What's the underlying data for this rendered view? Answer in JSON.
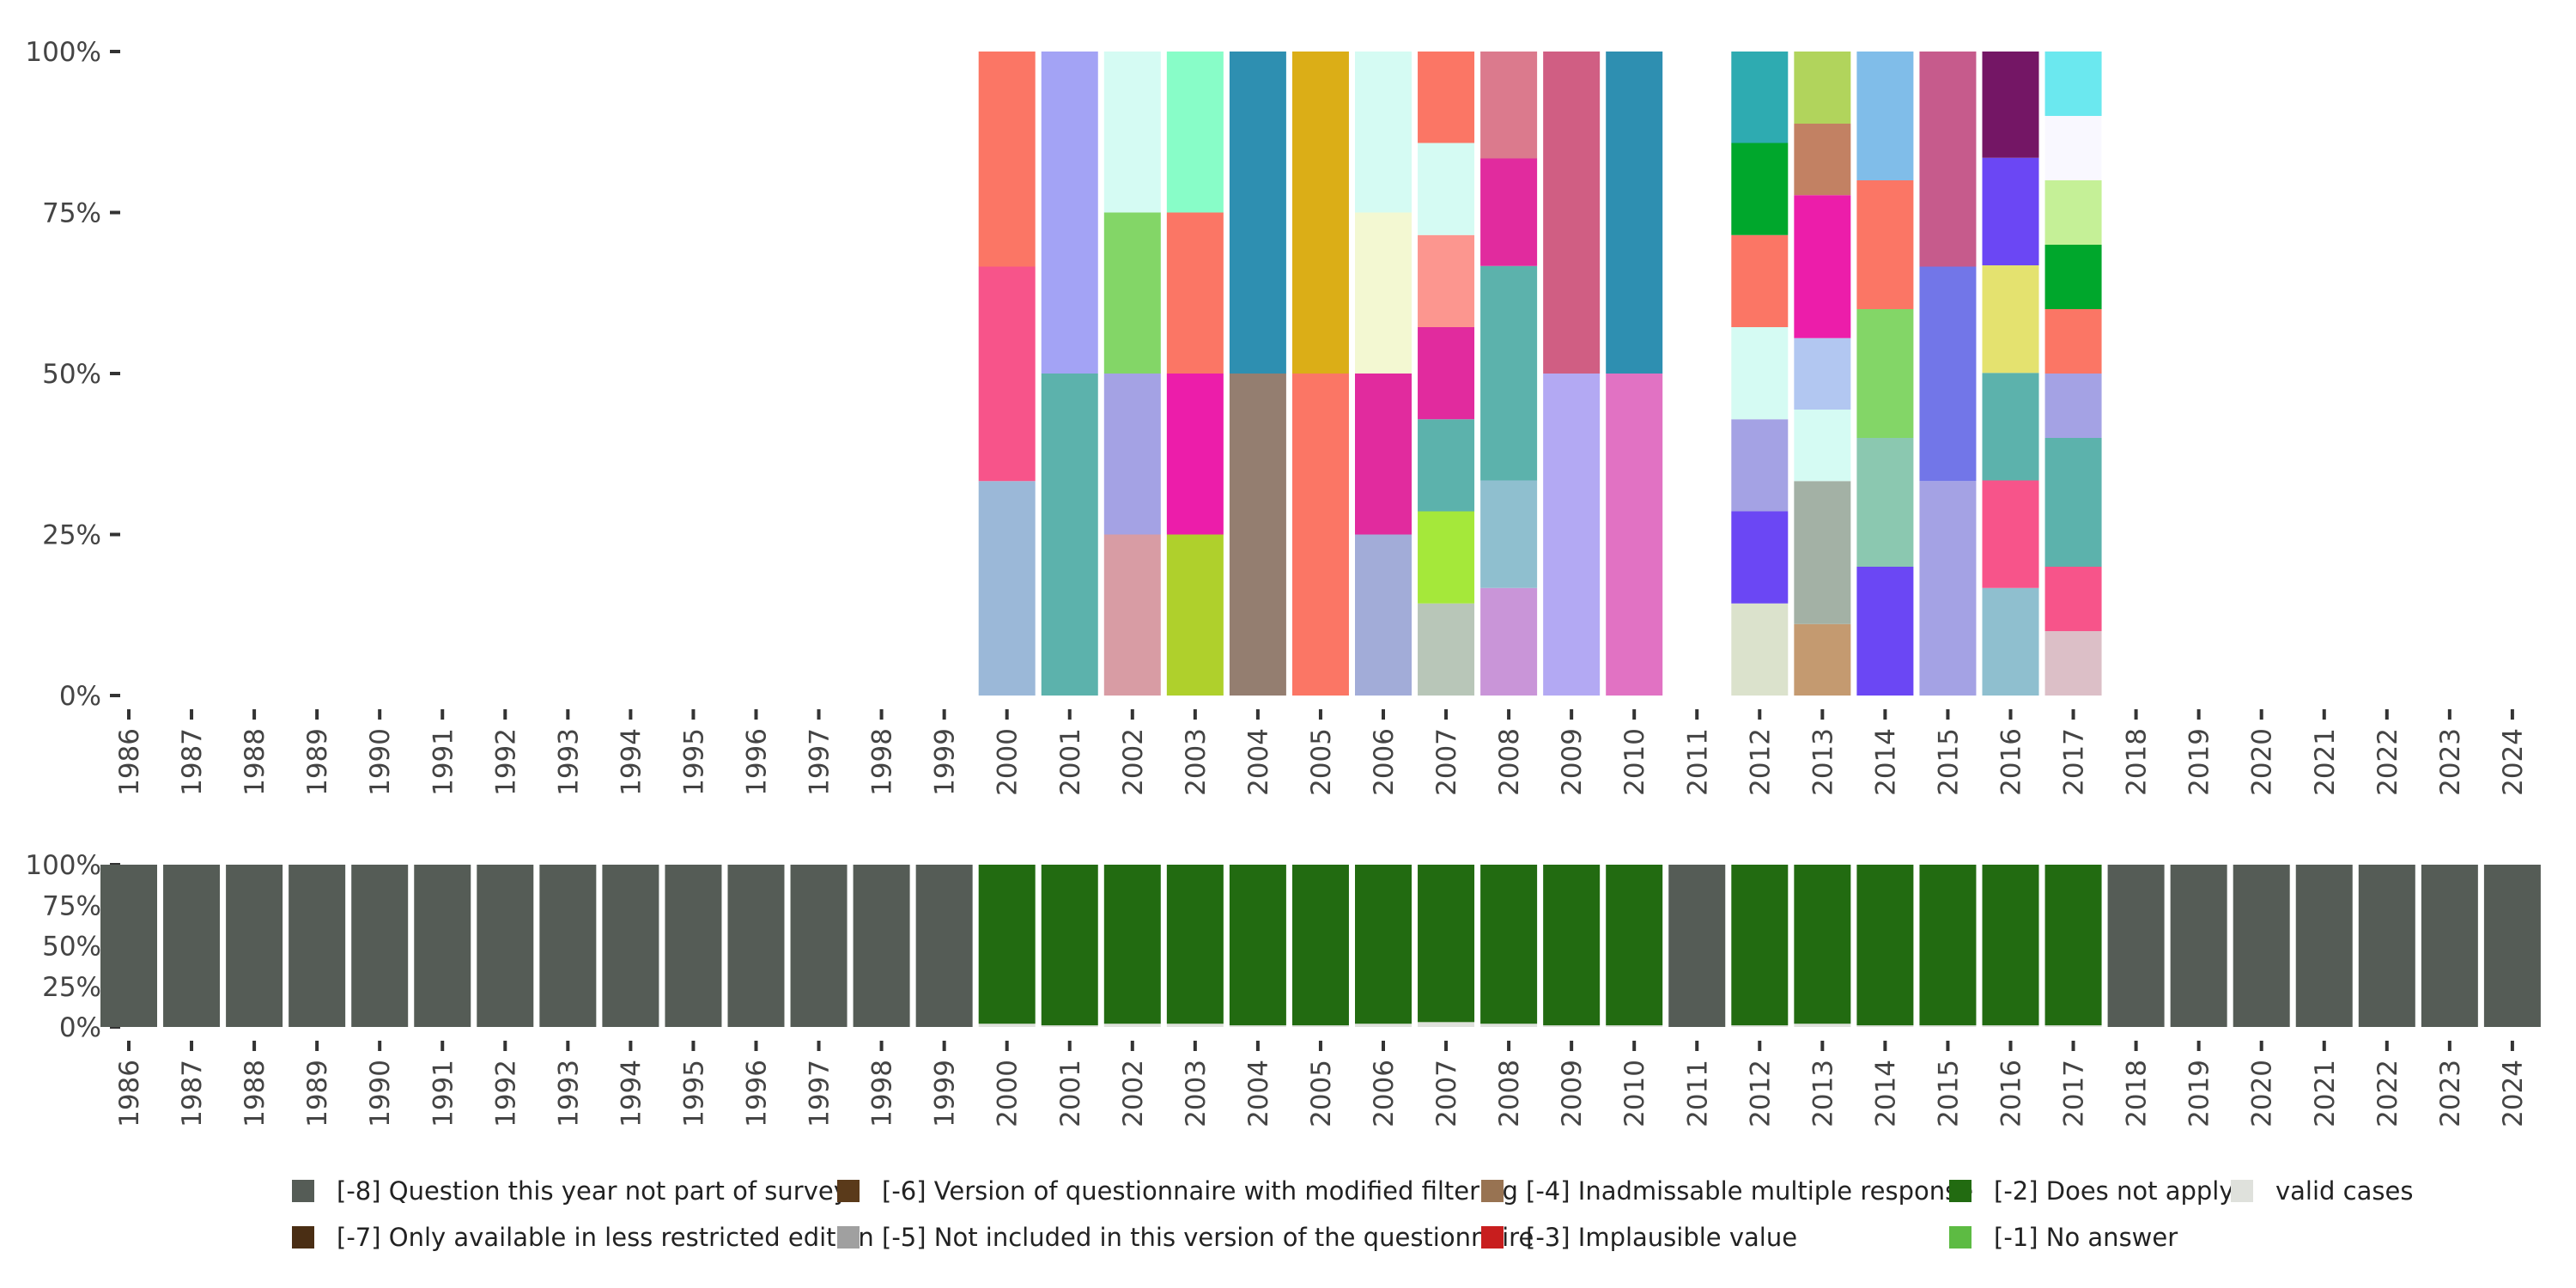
{
  "chart_data": [
    {
      "type": "bar",
      "stacked": true,
      "name": "valid-cases-distribution",
      "ylim": [
        0,
        100
      ],
      "y_ticks": [
        0,
        25,
        50,
        75,
        100
      ],
      "y_tick_labels": [
        "0%",
        "25%",
        "50%",
        "75%",
        "100%"
      ],
      "categories": [
        "1986",
        "1987",
        "1988",
        "1989",
        "1990",
        "1991",
        "1992",
        "1993",
        "1994",
        "1995",
        "1996",
        "1997",
        "1998",
        "1999",
        "2000",
        "2001",
        "2002",
        "2003",
        "2004",
        "2005",
        "2006",
        "2007",
        "2008",
        "2009",
        "2010",
        "2011",
        "2012",
        "2013",
        "2014",
        "2015",
        "2016",
        "2017",
        "2018",
        "2019",
        "2020",
        "2021",
        "2022",
        "2023",
        "2024"
      ],
      "stacks": {
        "2000": [
          {
            "value": 33.3,
            "color": "#9bb8d8"
          },
          {
            "value": 33.3,
            "color": "#f7548a"
          },
          {
            "value": 33.4,
            "color": "#fb7665"
          }
        ],
        "2001": [
          {
            "value": 50,
            "color": "#5cb2ac"
          },
          {
            "value": 50,
            "color": "#a3a3f5"
          }
        ],
        "2002": [
          {
            "value": 25,
            "color": "#d89ca4"
          },
          {
            "value": 25,
            "color": "#a4a2e4"
          },
          {
            "value": 25,
            "color": "#83d667"
          },
          {
            "value": 25,
            "color": "#d5fbf3"
          }
        ],
        "2003": [
          {
            "value": 25,
            "color": "#afd02c"
          },
          {
            "value": 25,
            "color": "#ec1daa"
          },
          {
            "value": 25,
            "color": "#fb7665"
          },
          {
            "value": 25,
            "color": "#88fdc8"
          }
        ],
        "2004": [
          {
            "value": 50,
            "color": "#947e70"
          },
          {
            "value": 50,
            "color": "#2e8fb1"
          }
        ],
        "2005": [
          {
            "value": 50,
            "color": "#fb7665"
          },
          {
            "value": 50,
            "color": "#dbae17"
          }
        ],
        "2006": [
          {
            "value": 25,
            "color": "#a2acd8"
          },
          {
            "value": 25,
            "color": "#e12b9e"
          },
          {
            "value": 25,
            "color": "#f3f8d2"
          },
          {
            "value": 25,
            "color": "#d5fbf3"
          }
        ],
        "2007": [
          {
            "value": 14.3,
            "color": "#b8c6b8"
          },
          {
            "value": 14.3,
            "color": "#a5e83a"
          },
          {
            "value": 14.3,
            "color": "#5cb2ac"
          },
          {
            "value": 14.3,
            "color": "#e12b9e"
          },
          {
            "value": 14.3,
            "color": "#fc968f"
          },
          {
            "value": 14.3,
            "color": "#d5fbf3"
          },
          {
            "value": 14.2,
            "color": "#fb7665"
          }
        ],
        "2008": [
          {
            "value": 16.7,
            "color": "#c995d8"
          },
          {
            "value": 16.7,
            "color": "#8fbfcf"
          },
          {
            "value": 33.3,
            "color": "#5cb2ac"
          },
          {
            "value": 16.7,
            "color": "#e12b9e"
          },
          {
            "value": 16.6,
            "color": "#db7a8d"
          }
        ],
        "2009": [
          {
            "value": 50,
            "color": "#b3a9f3"
          },
          {
            "value": 50,
            "color": "#d05e83"
          }
        ],
        "2010": [
          {
            "value": 50,
            "color": "#e172c3"
          },
          {
            "value": 50,
            "color": "#2e8fb1"
          }
        ],
        "2012": [
          {
            "value": 14.3,
            "color": "#dbe2cc"
          },
          {
            "value": 14.3,
            "color": "#6b47f4"
          },
          {
            "value": 14.3,
            "color": "#a4a2e4"
          },
          {
            "value": 14.3,
            "color": "#d5fbf3"
          },
          {
            "value": 14.3,
            "color": "#fb7665"
          },
          {
            "value": 14.3,
            "color": "#00a72c"
          },
          {
            "value": 14.2,
            "color": "#2eabb1"
          }
        ],
        "2013": [
          {
            "value": 11.1,
            "color": "#c49a70"
          },
          {
            "value": 22.2,
            "color": "#a3b1a5"
          },
          {
            "value": 11.1,
            "color": "#d5fbf3"
          },
          {
            "value": 11.1,
            "color": "#b2c7f1"
          },
          {
            "value": 22.2,
            "color": "#ec1daa"
          },
          {
            "value": 11.1,
            "color": "#c28163"
          },
          {
            "value": 11.2,
            "color": "#b1d45c"
          }
        ],
        "2014": [
          {
            "value": 20,
            "color": "#6b47f4"
          },
          {
            "value": 20,
            "color": "#8bc8b0"
          },
          {
            "value": 20,
            "color": "#83d667"
          },
          {
            "value": 20,
            "color": "#fb7665"
          },
          {
            "value": 20,
            "color": "#80bde9"
          }
        ],
        "2015": [
          {
            "value": 33.3,
            "color": "#a4a2e4"
          },
          {
            "value": 33.3,
            "color": "#7276e8"
          },
          {
            "value": 33.4,
            "color": "#c65b8c"
          }
        ],
        "2016": [
          {
            "value": 16.7,
            "color": "#8fbfcf"
          },
          {
            "value": 16.7,
            "color": "#f7548a"
          },
          {
            "value": 16.7,
            "color": "#5cb2ac"
          },
          {
            "value": 16.7,
            "color": "#e4e26f"
          },
          {
            "value": 16.7,
            "color": "#6b47f4"
          },
          {
            "value": 16.5,
            "color": "#741665"
          }
        ],
        "2017": [
          {
            "value": 10,
            "color": "#dcbfc7"
          },
          {
            "value": 10,
            "color": "#f7548a"
          },
          {
            "value": 20,
            "color": "#5cb2ac"
          },
          {
            "value": 10,
            "color": "#a4a2e4"
          },
          {
            "value": 10,
            "color": "#fb7665"
          },
          {
            "value": 10,
            "color": "#00a72c"
          },
          {
            "value": 10,
            "color": "#c5f097"
          },
          {
            "value": 10,
            "color": "#f9f8ff"
          },
          {
            "value": 10,
            "color": "#6be8ef"
          }
        ]
      }
    },
    {
      "type": "bar",
      "stacked": true,
      "name": "missing-codes-overview",
      "ylim": [
        0,
        100
      ],
      "y_ticks": [
        0,
        25,
        50,
        75,
        100
      ],
      "y_tick_labels": [
        "0%",
        "25%",
        "50%",
        "75%",
        "100%"
      ],
      "categories": [
        "1986",
        "1987",
        "1988",
        "1989",
        "1990",
        "1991",
        "1992",
        "1993",
        "1994",
        "1995",
        "1996",
        "1997",
        "1998",
        "1999",
        "2000",
        "2001",
        "2002",
        "2003",
        "2004",
        "2005",
        "2006",
        "2007",
        "2008",
        "2009",
        "2010",
        "2011",
        "2012",
        "2013",
        "2014",
        "2015",
        "2016",
        "2017",
        "2018",
        "2019",
        "2020",
        "2021",
        "2022",
        "2023",
        "2024"
      ],
      "series": [
        {
          "name": "valid cases",
          "color": "#dfe1dc",
          "values": [
            0,
            0,
            0,
            0,
            0,
            0,
            0,
            0,
            0,
            0,
            0,
            0,
            0,
            0,
            2,
            1,
            2,
            2,
            1,
            1,
            2,
            3,
            2,
            1,
            1,
            0,
            1,
            2,
            1,
            1,
            1,
            1,
            0,
            0,
            0,
            0,
            0,
            0,
            0
          ]
        },
        {
          "name": "[-2] Does not apply",
          "color": "#226b11",
          "values": [
            0,
            0,
            0,
            0,
            0,
            0,
            0,
            0,
            0,
            0,
            0,
            0,
            0,
            0,
            98,
            99,
            98,
            98,
            99,
            99,
            98,
            97,
            98,
            99,
            99,
            0,
            99,
            98,
            99,
            99,
            99,
            99,
            0,
            0,
            0,
            0,
            0,
            0,
            0
          ]
        },
        {
          "name": "[-8] Question this year not part of survey",
          "color": "#555c56",
          "values": [
            100,
            100,
            100,
            100,
            100,
            100,
            100,
            100,
            100,
            100,
            100,
            100,
            100,
            100,
            0,
            0,
            0,
            0,
            0,
            0,
            0,
            0,
            0,
            0,
            0,
            100,
            0,
            0,
            0,
            0,
            0,
            0,
            100,
            100,
            100,
            100,
            100,
            100,
            100
          ]
        }
      ]
    }
  ],
  "legend": [
    {
      "label": "[-8] Question this year not part of survey",
      "color": "#555c56"
    },
    {
      "label": "[-7] Only available in less restricted edition",
      "color": "#4a2e14"
    },
    {
      "label": "[-6] Version of questionnaire with modified filtering",
      "color": "#5a3a1a"
    },
    {
      "label": "[-5] Not included in this version of the questionnaire",
      "color": "#a0a0a0"
    },
    {
      "label": "[-4] Inadmissable multiple response",
      "color": "#987352"
    },
    {
      "label": "[-3] Implausible value",
      "color": "#c81e1e"
    },
    {
      "label": "[-2] Does not apply",
      "color": "#226b11"
    },
    {
      "label": "[-1] No answer",
      "color": "#5dbb43"
    },
    {
      "label": "valid cases",
      "color": "#dfe1dc"
    }
  ]
}
